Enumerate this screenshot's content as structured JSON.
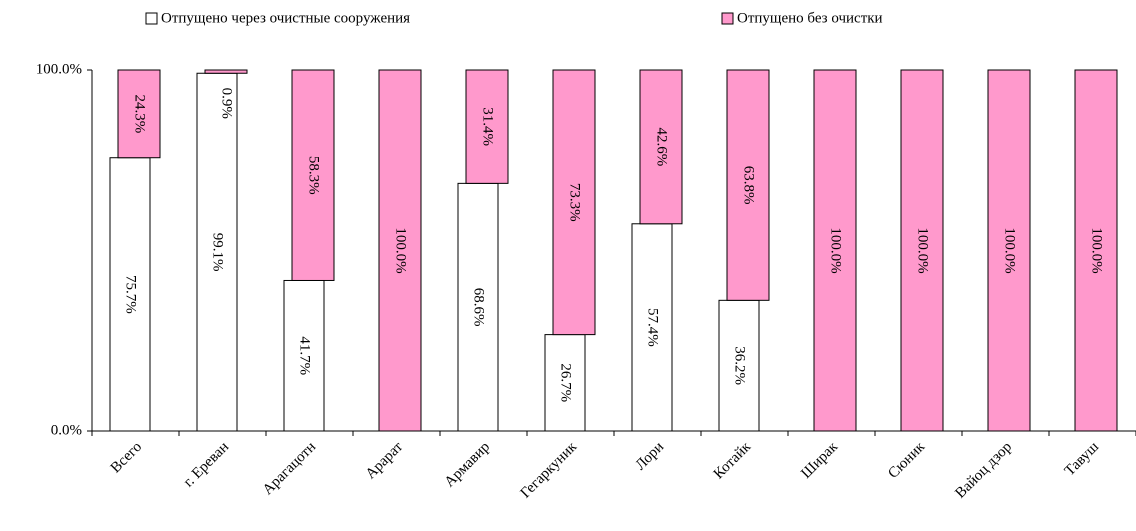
{
  "chart_data": {
    "type": "staggered_stacked_bar",
    "categories": [
      "Всего",
      "г. Ереван",
      "Арагацотн",
      "Арарат",
      "Армавир",
      "Гегаркуник",
      "Лори",
      "Котайк",
      "Ширак",
      "Сюник",
      "Вайоц дзор",
      "Тавуш"
    ],
    "series": [
      {
        "name": "Отпущено через очистные сооружения",
        "color": "#ffffff",
        "values": [
          75.7,
          99.1,
          41.7,
          0,
          68.6,
          26.7,
          57.4,
          36.2,
          0,
          0,
          0,
          0
        ],
        "value_labels": [
          "75.7%",
          "99.1%",
          "41.7%",
          null,
          "68.6%",
          "26.7%",
          "57.4%",
          "36.2%",
          null,
          null,
          null,
          null
        ]
      },
      {
        "name": "Отпущено без очистки",
        "color": "#ff99cc",
        "values": [
          24.3,
          0.9,
          58.3,
          100,
          31.4,
          73.3,
          42.6,
          63.8,
          100,
          100,
          100,
          100
        ],
        "value_labels": [
          "24.3%",
          "0.9%",
          "58.3%",
          "100.0%",
          "31.4%",
          "73.3%",
          "42.6%",
          "63.8%",
          "100.0%",
          "100.0%",
          "100.0%",
          "100.0%"
        ]
      }
    ],
    "ylim": [
      0,
      100
    ],
    "yticks": [
      {
        "value": 0,
        "label": "0.0%"
      },
      {
        "value": 100,
        "label": "100.0%"
      }
    ],
    "legend": "top"
  }
}
